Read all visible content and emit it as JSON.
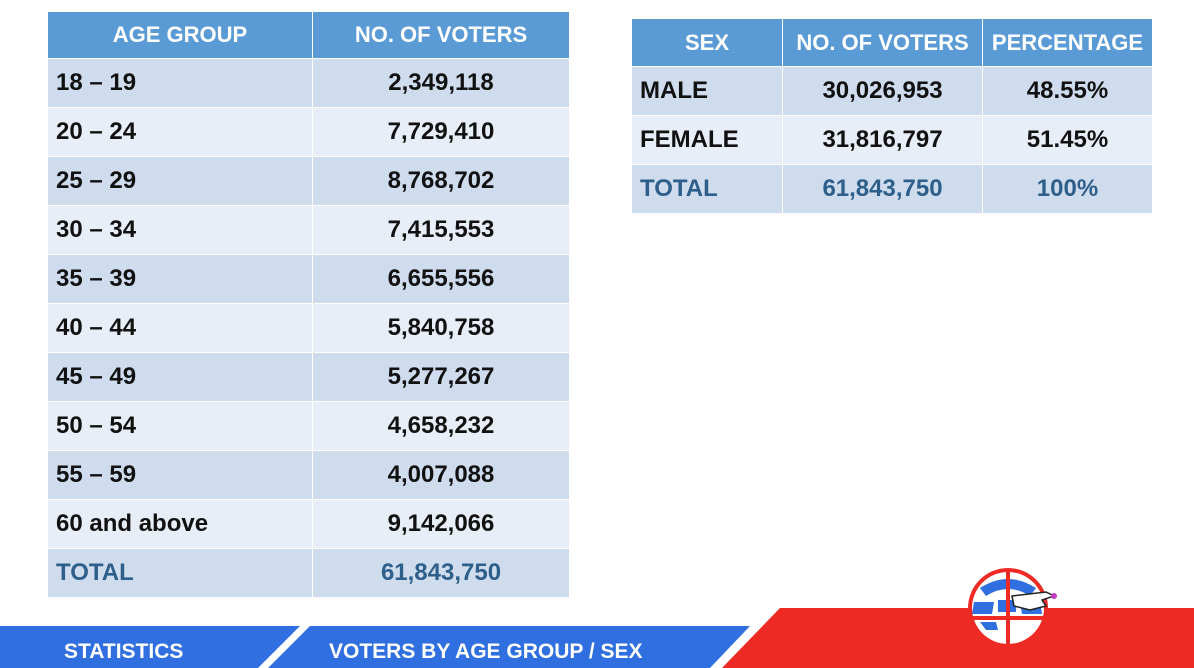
{
  "age_table": {
    "headers": [
      "AGE GROUP",
      "NO. OF VOTERS"
    ],
    "rows": [
      {
        "group": "18 – 19",
        "voters": "2,349,118"
      },
      {
        "group": "20 – 24",
        "voters": "7,729,410"
      },
      {
        "group": "25 – 29",
        "voters": "8,768,702"
      },
      {
        "group": "30 – 34",
        "voters": "7,415,553"
      },
      {
        "group": "35 – 39",
        "voters": "6,655,556"
      },
      {
        "group": "40 – 44",
        "voters": "5,840,758"
      },
      {
        "group": "45 – 49",
        "voters": "5,277,267"
      },
      {
        "group": "50 – 54",
        "voters": "4,658,232"
      },
      {
        "group": "55 – 59",
        "voters": "4,007,088"
      },
      {
        "group": "60 and above",
        "voters": "9,142,066"
      }
    ],
    "total": {
      "label": "TOTAL",
      "voters": "61,843,750"
    }
  },
  "sex_table": {
    "headers": [
      "SEX",
      "NO. OF VOTERS",
      "PERCENTAGE"
    ],
    "rows": [
      {
        "sex": "MALE",
        "voters": "30,026,953",
        "percentage": "48.55%"
      },
      {
        "sex": "FEMALE",
        "voters": "31,816,797",
        "percentage": "51.45%"
      }
    ],
    "total": {
      "label": "TOTAL",
      "voters": "61,843,750",
      "percentage": "100%"
    }
  },
  "footer": {
    "section_label": "STATISTICS",
    "title": "VOTERS BY AGE GROUP / SEX"
  },
  "colors": {
    "header_blue": "#5b9bd5",
    "row_dark": "#cfdcee",
    "row_light": "#e8eef7",
    "total_text": "#2e5f8a",
    "banner_blue": "#2f6fe0",
    "banner_red": "#ee2a24"
  },
  "logo": {
    "icon": "globe-ballot-hand-icon"
  }
}
